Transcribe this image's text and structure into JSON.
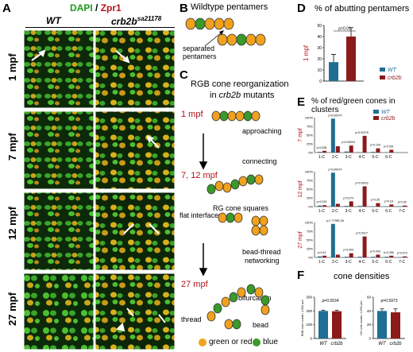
{
  "panelA": {
    "letter": "A",
    "title_dapi": "DAPI",
    "title_sep": " / ",
    "title_zpr": "Zpr1",
    "col_wt": "WT",
    "col_mut": "crb2b",
    "col_mut_sup": "sa21178",
    "rows": [
      "1 mpf",
      "7 mpf",
      "12 mpf",
      "27 mpf"
    ]
  },
  "panelB": {
    "letter": "B",
    "title": "Wildtype pentamers",
    "label": "separated pentamers"
  },
  "panelC": {
    "letter": "C",
    "title_line1": "RGB cone reorganization",
    "title_line2_pre": "in ",
    "title_line2_gene": "crb2b",
    "title_line2_post": " mutants",
    "stage1": "1 mpf",
    "approaching": "approaching",
    "connecting": "connecting",
    "stage2": "7, 12 mpf",
    "rg_squares": "RG cone squares",
    "flat": "flat interfaces",
    "bead_thread_1": "bead-thread",
    "bead_thread_2": "networking",
    "stage3": "27 mpf",
    "bifurcation": "bifurcation",
    "bead": "bead",
    "thread": "thread",
    "legend_orange": "green or red",
    "legend_green": "blue"
  },
  "panelD": {
    "letter": "D",
    "title": "% of abutting pentamers",
    "ylabel": "1 mpf",
    "pvalue": "p=0.01",
    "legend_wt": "WT",
    "legend_mut": "crb2b"
  },
  "panelE": {
    "letter": "E",
    "title": "% of red/green cones in clusters",
    "legend_wt": "WT",
    "legend_mut": "crb2b"
  },
  "panelF": {
    "letter": "F",
    "title": "cone densities",
    "left_ylabel": "RGB cone counts / 4,900 μm²",
    "left_p": "p=0.5534",
    "right_ylabel": "UV cone counts / 4,900 μm²",
    "right_p": "p=0.5973",
    "xlab_wt": "WT",
    "xlab_mut": "crb2b"
  },
  "colors": {
    "wt": "#1f6e94",
    "mut": "#8b1a1a",
    "cone_orange": "#f0a11e",
    "cone_green": "#3a9a2a",
    "red_title": "#b3121b"
  },
  "chart_data": [
    {
      "id": "D",
      "type": "bar",
      "categories": [
        "WT",
        "crb2b"
      ],
      "values": [
        17,
        40
      ],
      "errors": [
        7,
        8
      ],
      "ylim": [
        0,
        50
      ],
      "yticks": [
        0,
        10,
        20,
        30,
        40,
        50
      ],
      "title": "% of abutting pentamers",
      "ylabel": "1 mpf"
    },
    {
      "id": "E-7mpf",
      "type": "bar",
      "rowlabel": "7 mpf",
      "categories": [
        "1-C",
        "2-C",
        "3-C",
        "4-C",
        "5-C",
        "6-C"
      ],
      "series": [
        {
          "name": "WT",
          "values": [
            2,
            97,
            3,
            1,
            2,
            1
          ]
        },
        {
          "name": "crb2b",
          "values": [
            5,
            18,
            20,
            48,
            12,
            8
          ]
        }
      ],
      "pvalues": [
        "p=0.536",
        "p=0.00074",
        "p=0.00003",
        "p=0.00276",
        "p=0.103",
        "p=0.091"
      ],
      "ylim": [
        0,
        100
      ],
      "yticks": [
        "0%",
        "25%",
        "50%",
        "75%",
        "100%"
      ]
    },
    {
      "id": "E-12mpf",
      "type": "bar",
      "rowlabel": "12 mpf",
      "categories": [
        "1-C",
        "2-C",
        "3-C",
        "4-C",
        "5-C",
        "6-C",
        "7-C"
      ],
      "series": [
        {
          "name": "WT",
          "values": [
            3,
            97,
            2,
            2,
            1,
            1,
            1
          ]
        },
        {
          "name": "crb2b",
          "values": [
            4,
            8,
            15,
            58,
            10,
            6,
            3
          ]
        }
      ],
      "pvalues": [
        "p=0.015",
        "p=0.00074",
        "p=0.074",
        "p=0.00022",
        "p=0.35",
        "p=0.18",
        "p=0.35"
      ],
      "ylim": [
        0,
        100
      ],
      "yticks": [
        "0%",
        "25%",
        "50%",
        "75%",
        "100%"
      ]
    },
    {
      "id": "E-27mpf",
      "type": "bar",
      "rowlabel": "27 mpf",
      "categories": [
        "1-C",
        "2-C",
        "3-C",
        "4-C",
        "5-C",
        "6-C",
        "7-C"
      ],
      "series": [
        {
          "name": "WT",
          "values": [
            3,
            96,
            2,
            2,
            2,
            2,
            1
          ]
        },
        {
          "name": "crb2b",
          "values": [
            5,
            8,
            12,
            60,
            8,
            5,
            3
          ]
        }
      ],
      "pvalues": [
        "p=0.42",
        "p=7.7799E-06",
        "p=0.004",
        "p=0.0017",
        "p=0.043",
        "p=0.256",
        "p=0.373"
      ],
      "ylim": [
        0,
        100
      ],
      "yticks": [
        "0%",
        "25%",
        "50%",
        "75%",
        "100%"
      ]
    },
    {
      "id": "F-RGB",
      "type": "bar",
      "categories": [
        "WT",
        "crb2b"
      ],
      "values": [
        200,
        198
      ],
      "errors": [
        6,
        8
      ],
      "ylim": [
        0,
        300
      ],
      "yticks": [
        0,
        100,
        200,
        300
      ],
      "ylabel": "RGB cone counts / 4,900 μm²",
      "pvalue": "p=0.5534"
    },
    {
      "id": "F-UV",
      "type": "bar",
      "categories": [
        "WT",
        "crb2b"
      ],
      "values": [
        40,
        38
      ],
      "errors": [
        3,
        5
      ],
      "ylim": [
        0,
        60
      ],
      "yticks": [
        0,
        20,
        40,
        60
      ],
      "ylabel": "UV cone counts / 4,900 μm²",
      "pvalue": "p=0.5973"
    }
  ]
}
